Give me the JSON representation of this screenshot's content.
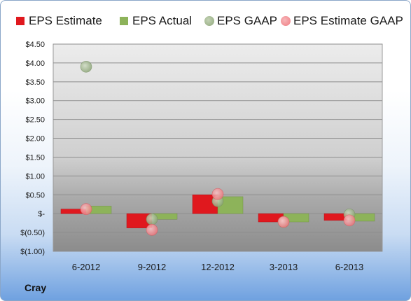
{
  "company": "Cray",
  "chart_data": {
    "type": "bar",
    "categories": [
      "6-2012",
      "9-2012",
      "12-2012",
      "3-2013",
      "6-2013"
    ],
    "series": [
      {
        "name": "EPS Estimate",
        "kind": "bar",
        "color": "#e0181e",
        "values": [
          0.12,
          -0.38,
          0.5,
          -0.22,
          -0.18
        ]
      },
      {
        "name": "EPS Actual",
        "kind": "bar",
        "color": "#8db35a",
        "values": [
          0.2,
          -0.15,
          0.45,
          -0.22,
          -0.2
        ]
      },
      {
        "name": "EPS GAAP",
        "kind": "dot",
        "color": "#8fa77a",
        "values": [
          3.9,
          -0.15,
          0.33,
          -0.22,
          -0.02
        ]
      },
      {
        "name": "EPS Estimate GAAP",
        "kind": "dot",
        "color": "#ef7a80",
        "values": [
          0.12,
          -0.43,
          0.52,
          -0.22,
          -0.18
        ]
      }
    ],
    "yticks": [
      "$4.50",
      "$4.00",
      "$3.50",
      "$3.00",
      "$2.50",
      "$2.00",
      "$1.50",
      "$1.00",
      "$0.50",
      "$-",
      "$(0.50)",
      "$(1.00)"
    ],
    "ylim": [
      -1.0,
      4.5
    ],
    "legend_position": "top",
    "grid": true
  }
}
